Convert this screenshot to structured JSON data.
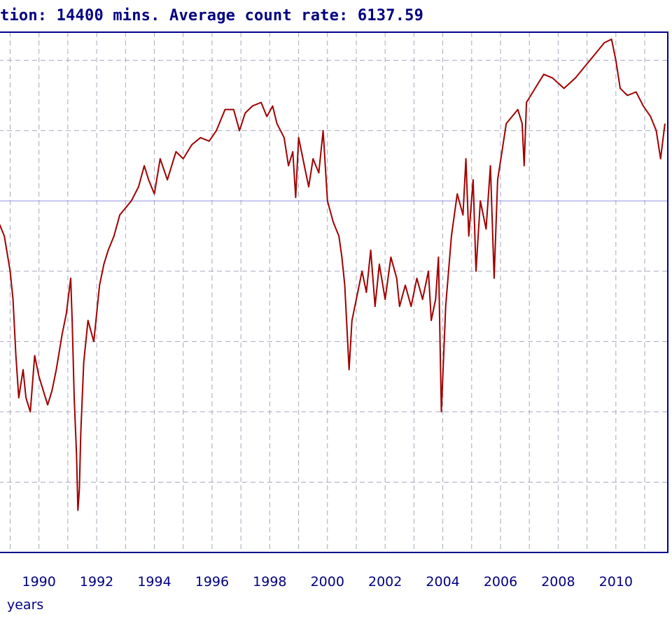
{
  "title": "tion: 14400 mins. Average count rate: 6137.59",
  "colors": {
    "series": "#a00000",
    "frame": "#00008b",
    "grid": "#a6a6bf",
    "reference_line": "#9e9ee6",
    "text": "#000080"
  },
  "chart_data": {
    "type": "line",
    "title": "tion: 14400 mins. Average count rate: 6137.59",
    "xlabel": "years",
    "ylabel": "",
    "x_ticks": [
      1990,
      1992,
      1994,
      1996,
      1998,
      2000,
      2002,
      2004,
      2006,
      2008,
      2010
    ],
    "xlim": [
      1988.6,
      2011.8
    ],
    "ylim": [
      0,
      7.4
    ],
    "grid": true,
    "average_line": 5.0,
    "series": [
      {
        "name": "",
        "points": [
          [
            1988.6,
            4.7
          ],
          [
            1988.8,
            4.5
          ],
          [
            1989.0,
            4.0
          ],
          [
            1989.1,
            3.6
          ],
          [
            1989.2,
            2.8
          ],
          [
            1989.3,
            2.2
          ],
          [
            1989.45,
            2.6
          ],
          [
            1989.55,
            2.2
          ],
          [
            1989.7,
            2.0
          ],
          [
            1989.85,
            2.8
          ],
          [
            1990.0,
            2.5
          ],
          [
            1990.15,
            2.3
          ],
          [
            1990.3,
            2.1
          ],
          [
            1990.45,
            2.3
          ],
          [
            1990.6,
            2.6
          ],
          [
            1990.8,
            3.1
          ],
          [
            1990.95,
            3.4
          ],
          [
            1991.1,
            3.9
          ],
          [
            1991.15,
            3.3
          ],
          [
            1991.22,
            2.2
          ],
          [
            1991.3,
            1.4
          ],
          [
            1991.35,
            0.6
          ],
          [
            1991.4,
            0.9
          ],
          [
            1991.45,
            1.7
          ],
          [
            1991.55,
            2.7
          ],
          [
            1991.7,
            3.3
          ],
          [
            1991.9,
            3.0
          ],
          [
            1992.0,
            3.4
          ],
          [
            1992.1,
            3.8
          ],
          [
            1992.25,
            4.1
          ],
          [
            1992.4,
            4.3
          ],
          [
            1992.6,
            4.5
          ],
          [
            1992.8,
            4.8
          ],
          [
            1993.0,
            4.9
          ],
          [
            1993.2,
            5.0
          ],
          [
            1993.45,
            5.2
          ],
          [
            1993.65,
            5.5
          ],
          [
            1993.8,
            5.3
          ],
          [
            1994.0,
            5.1
          ],
          [
            1994.2,
            5.6
          ],
          [
            1994.45,
            5.3
          ],
          [
            1994.75,
            5.7
          ],
          [
            1995.0,
            5.6
          ],
          [
            1995.3,
            5.8
          ],
          [
            1995.6,
            5.9
          ],
          [
            1995.9,
            5.85
          ],
          [
            1996.15,
            6.0
          ],
          [
            1996.45,
            6.3
          ],
          [
            1996.75,
            6.3
          ],
          [
            1996.95,
            6.0
          ],
          [
            1997.15,
            6.25
          ],
          [
            1997.4,
            6.35
          ],
          [
            1997.7,
            6.4
          ],
          [
            1997.9,
            6.2
          ],
          [
            1998.1,
            6.35
          ],
          [
            1998.25,
            6.1
          ],
          [
            1998.5,
            5.9
          ],
          [
            1998.65,
            5.5
          ],
          [
            1998.8,
            5.7
          ],
          [
            1998.9,
            5.05
          ],
          [
            1999.0,
            5.9
          ],
          [
            1999.2,
            5.5
          ],
          [
            1999.35,
            5.2
          ],
          [
            1999.5,
            5.6
          ],
          [
            1999.7,
            5.4
          ],
          [
            1999.85,
            6.0
          ],
          [
            2000.0,
            5.0
          ],
          [
            2000.2,
            4.7
          ],
          [
            2000.4,
            4.5
          ],
          [
            2000.5,
            4.2
          ],
          [
            2000.6,
            3.8
          ],
          [
            2000.75,
            2.6
          ],
          [
            2000.85,
            3.3
          ],
          [
            2001.0,
            3.6
          ],
          [
            2001.2,
            4.0
          ],
          [
            2001.35,
            3.7
          ],
          [
            2001.5,
            4.3
          ],
          [
            2001.65,
            3.5
          ],
          [
            2001.8,
            4.1
          ],
          [
            2002.0,
            3.6
          ],
          [
            2002.2,
            4.2
          ],
          [
            2002.4,
            3.9
          ],
          [
            2002.5,
            3.5
          ],
          [
            2002.7,
            3.8
          ],
          [
            2002.9,
            3.5
          ],
          [
            2003.1,
            3.9
          ],
          [
            2003.3,
            3.6
          ],
          [
            2003.5,
            4.0
          ],
          [
            2003.6,
            3.3
          ],
          [
            2003.75,
            3.6
          ],
          [
            2003.85,
            4.2
          ],
          [
            2003.95,
            2.0
          ],
          [
            2004.1,
            3.5
          ],
          [
            2004.3,
            4.5
          ],
          [
            2004.5,
            5.1
          ],
          [
            2004.7,
            4.8
          ],
          [
            2004.8,
            5.6
          ],
          [
            2004.9,
            4.5
          ],
          [
            2005.05,
            5.3
          ],
          [
            2005.15,
            4.0
          ],
          [
            2005.3,
            5.0
          ],
          [
            2005.5,
            4.6
          ],
          [
            2005.65,
            5.5
          ],
          [
            2005.78,
            3.9
          ],
          [
            2005.9,
            5.3
          ],
          [
            2006.05,
            5.7
          ],
          [
            2006.2,
            6.1
          ],
          [
            2006.4,
            6.2
          ],
          [
            2006.6,
            6.3
          ],
          [
            2006.75,
            6.1
          ],
          [
            2006.82,
            5.5
          ],
          [
            2006.9,
            6.4
          ],
          [
            2007.2,
            6.6
          ],
          [
            2007.5,
            6.8
          ],
          [
            2007.8,
            6.75
          ],
          [
            2008.2,
            6.6
          ],
          [
            2008.6,
            6.75
          ],
          [
            2009.0,
            6.95
          ],
          [
            2009.3,
            7.1
          ],
          [
            2009.6,
            7.25
          ],
          [
            2009.85,
            7.3
          ],
          [
            2010.0,
            7.0
          ],
          [
            2010.15,
            6.6
          ],
          [
            2010.4,
            6.5
          ],
          [
            2010.7,
            6.55
          ],
          [
            2010.95,
            6.35
          ],
          [
            2011.2,
            6.2
          ],
          [
            2011.4,
            6.0
          ],
          [
            2011.55,
            5.6
          ],
          [
            2011.7,
            6.1
          ]
        ]
      }
    ]
  }
}
